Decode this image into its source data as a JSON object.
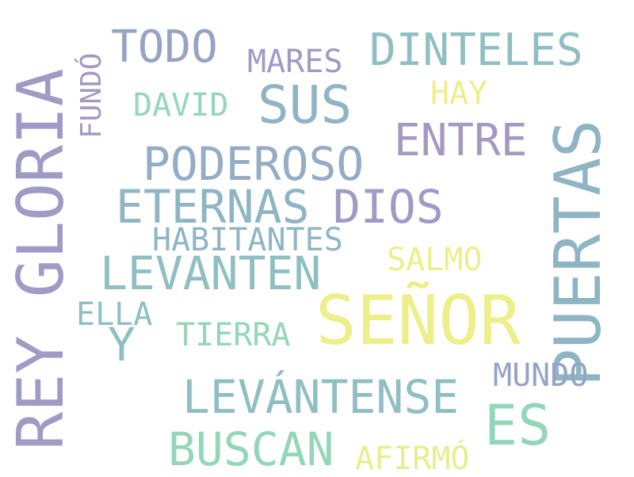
{
  "palette": {
    "lavender": "#9e9bc4",
    "slate": "#95a3c4",
    "teal": "#8fbfc2",
    "seafoam": "#94d6b8",
    "cream": "#e6ef8e",
    "yellow": "#ecef8a",
    "purple": "#a699c0"
  },
  "words": [
    {
      "text": "REY GLORIA"
    },
    {
      "text": "FUNDÓ"
    },
    {
      "text": "TODO"
    },
    {
      "text": "MARES"
    },
    {
      "text": "DINTELES"
    },
    {
      "text": "DAVID"
    },
    {
      "text": "SUS"
    },
    {
      "text": "HAY"
    },
    {
      "text": "ENTRE"
    },
    {
      "text": "PUERTAS"
    },
    {
      "text": "PODEROSO"
    },
    {
      "text": "ETERNAS"
    },
    {
      "text": "DIOS"
    },
    {
      "text": "HABITANTES"
    },
    {
      "text": "SALMO"
    },
    {
      "text": "LEVANTEN"
    },
    {
      "text": "ELLA"
    },
    {
      "text": "SEÑOR"
    },
    {
      "text": "Y"
    },
    {
      "text": "TIERRA"
    },
    {
      "text": "MUNDO"
    },
    {
      "text": "LEVÁNTENSE"
    },
    {
      "text": "ES"
    },
    {
      "text": "BUSCAN"
    },
    {
      "text": "AFIRMÓ"
    }
  ]
}
